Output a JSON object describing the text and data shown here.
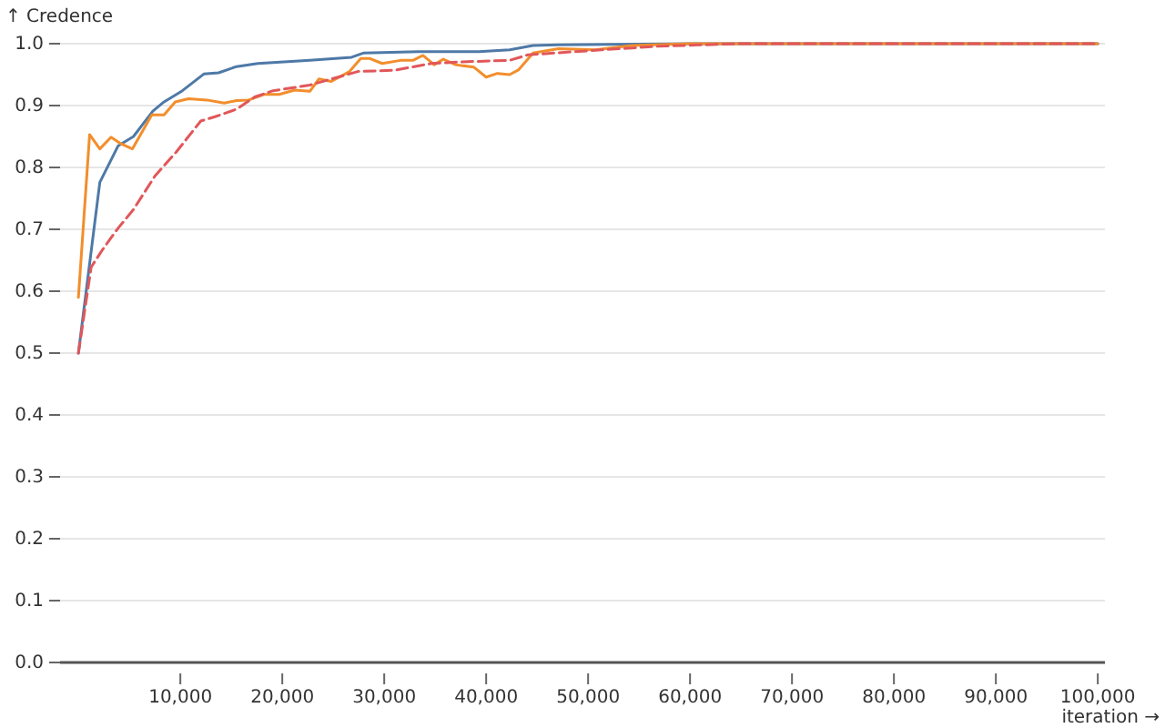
{
  "chart_data": {
    "type": "line",
    "ylabel": "↑ Credence",
    "xlabel": "iteration →",
    "xlim": [
      -1800,
      100700
    ],
    "ylim": [
      0,
      1
    ],
    "xticks": [
      {
        "value": 10000,
        "label": "10,000"
      },
      {
        "value": 20000,
        "label": "20,000"
      },
      {
        "value": 30000,
        "label": "30,000"
      },
      {
        "value": 40000,
        "label": "40,000"
      },
      {
        "value": 50000,
        "label": "50,000"
      },
      {
        "value": 60000,
        "label": "60,000"
      },
      {
        "value": 70000,
        "label": "70,000"
      },
      {
        "value": 80000,
        "label": "80,000"
      },
      {
        "value": 90000,
        "label": "90,000"
      },
      {
        "value": 100000,
        "label": "100,000"
      }
    ],
    "yticks": [
      {
        "value": 0,
        "label": "0.0"
      },
      {
        "value": 0.1,
        "label": "0.1"
      },
      {
        "value": 0.2,
        "label": "0.2"
      },
      {
        "value": 0.3,
        "label": "0.3"
      },
      {
        "value": 0.4,
        "label": "0.4"
      },
      {
        "value": 0.5,
        "label": "0.5"
      },
      {
        "value": 0.6,
        "label": "0.6"
      },
      {
        "value": 0.7,
        "label": "0.7"
      },
      {
        "value": 0.8,
        "label": "0.8"
      },
      {
        "value": 0.9,
        "label": "0.9"
      },
      {
        "value": 1,
        "label": "1.0"
      }
    ],
    "grid": "y",
    "series": [
      {
        "color": "#4e79a7",
        "line_style": "solid",
        "x": [
          0,
          2100,
          3900,
          5400,
          7300,
          8400,
          10200,
          12300,
          13750,
          15500,
          17600,
          22700,
          26800,
          28000,
          33400,
          39300,
          42300,
          44600,
          47000,
          60000,
          100000
        ],
        "values": [
          0.5,
          0.776,
          0.835,
          0.85,
          0.891,
          0.906,
          0.924,
          0.951,
          0.953,
          0.963,
          0.968,
          0.973,
          0.978,
          0.985,
          0.987,
          0.987,
          0.99,
          0.997,
          0.998,
          1.0,
          1.0
        ]
      },
      {
        "color": "#f28e2c",
        "line_style": "solid",
        "x": [
          0,
          1100,
          2100,
          3200,
          4200,
          5300,
          7200,
          8400,
          9500,
          10800,
          12600,
          14300,
          15500,
          16700,
          18200,
          19700,
          21200,
          22700,
          23600,
          24800,
          26600,
          27700,
          28600,
          29800,
          31600,
          32800,
          33800,
          34900,
          35800,
          37000,
          38800,
          40000,
          41100,
          42300,
          43200,
          44600,
          47100,
          50700,
          54300,
          60000,
          100000
        ],
        "values": [
          0.59,
          0.853,
          0.83,
          0.849,
          0.838,
          0.83,
          0.885,
          0.885,
          0.906,
          0.911,
          0.909,
          0.904,
          0.908,
          0.909,
          0.918,
          0.918,
          0.925,
          0.923,
          0.943,
          0.939,
          0.955,
          0.976,
          0.976,
          0.968,
          0.973,
          0.973,
          0.981,
          0.966,
          0.975,
          0.966,
          0.962,
          0.946,
          0.952,
          0.95,
          0.958,
          0.985,
          0.992,
          0.99,
          0.997,
          1.0,
          1.0
        ]
      },
      {
        "color": "#e15759",
        "line_style": "dashed",
        "x": [
          0,
          1250,
          2400,
          3900,
          5400,
          7500,
          9600,
          12000,
          13400,
          15500,
          17300,
          19100,
          22700,
          27400,
          31000,
          34600,
          38200,
          42300,
          44100,
          51300,
          57000,
          65000,
          100000
        ],
        "values": [
          0.5,
          0.639,
          0.668,
          0.702,
          0.732,
          0.786,
          0.825,
          0.875,
          0.882,
          0.894,
          0.914,
          0.924,
          0.933,
          0.955,
          0.957,
          0.968,
          0.971,
          0.973,
          0.982,
          0.99,
          0.996,
          1.0,
          1.0
        ]
      }
    ]
  }
}
